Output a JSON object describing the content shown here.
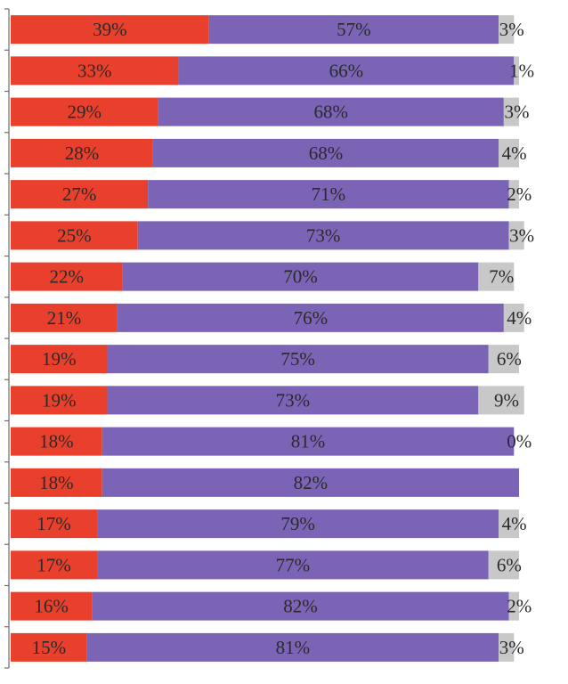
{
  "chart_data": {
    "type": "bar",
    "orientation": "horizontal",
    "stacked": true,
    "xlim": [
      0,
      100
    ],
    "grid": false,
    "legend": "none",
    "categories": [
      "",
      "",
      "",
      "",
      "",
      "",
      "",
      "",
      "",
      "",
      "",
      "",
      "",
      "",
      "",
      ""
    ],
    "series": [
      {
        "color": "#e8402c",
        "values": [
          39,
          33,
          29,
          28,
          27,
          25,
          22,
          21,
          19,
          19,
          18,
          18,
          17,
          17,
          16,
          15
        ],
        "labels": [
          "39%",
          "33%",
          "29%",
          "28%",
          "27%",
          "25%",
          "22%",
          "21%",
          "19%",
          "19%",
          "18%",
          "18%",
          "17%",
          "17%",
          "16%",
          "15%"
        ]
      },
      {
        "color": "#7b63b6",
        "values": [
          57,
          66,
          68,
          68,
          71,
          73,
          70,
          76,
          75,
          73,
          81,
          82,
          79,
          77,
          82,
          81
        ],
        "labels": [
          "57%",
          "66%",
          "68%",
          "68%",
          "71%",
          "73%",
          "70%",
          "76%",
          "75%",
          "73%",
          "81%",
          "82%",
          "79%",
          "77%",
          "82%",
          "81%"
        ]
      },
      {
        "color": "#c8c8c8",
        "values": [
          3,
          1,
          3,
          4,
          2,
          3,
          7,
          4,
          6,
          9,
          0,
          0,
          4,
          6,
          2,
          3
        ],
        "labels": [
          "3%",
          "1%",
          "3%",
          "4%",
          "2%",
          "3%",
          "7%",
          "4%",
          "6%",
          "9%",
          "0%",
          "",
          "4%",
          "6%",
          "2%",
          "3%"
        ]
      }
    ]
  }
}
